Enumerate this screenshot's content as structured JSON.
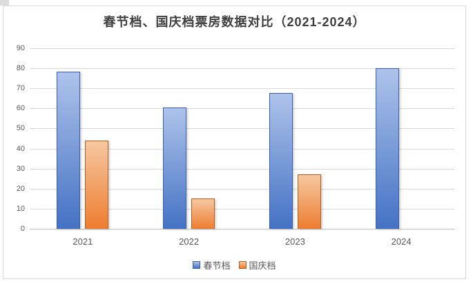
{
  "chart_data": {
    "type": "bar",
    "title": "春节档、国庆档票房数据对比（2021-2024）",
    "categories": [
      "2021",
      "2022",
      "2023",
      "2024"
    ],
    "series": [
      {
        "name": "春节档",
        "values": [
          78.4,
          60.4,
          67.6,
          80.2
        ],
        "fill_top": "#aec3ea",
        "fill_bottom": "#4472c4",
        "border": "#3a5ba9"
      },
      {
        "name": "国庆档",
        "values": [
          43.9,
          15.0,
          27.3,
          null
        ],
        "fill_top": "#f6c7a0",
        "fill_bottom": "#ed7d31",
        "border": "#b55d1e"
      }
    ],
    "xlabel": "",
    "ylabel": "",
    "ylim": [
      0,
      90
    ],
    "ytick_step": 10,
    "grid": true,
    "legend_position": "bottom"
  },
  "colors": {
    "frame_border": "#d9d9d9",
    "gridline": "#d9d9d9",
    "axis_line": "#bfbfbf",
    "title_text": "#3f3f3f",
    "tick_text": "#595959",
    "background": "#ffffff"
  }
}
